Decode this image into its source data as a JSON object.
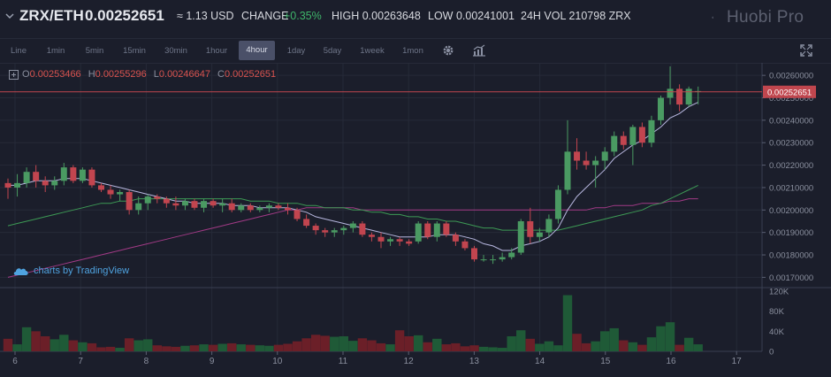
{
  "header": {
    "pair": "ZRX/ETH",
    "price": "0.00252651",
    "approx_usd": "≈ 1.13 USD",
    "change_label": "CHANGE",
    "change_value": "+0.35%",
    "high_label": "HIGH",
    "high_value": "0.00263648",
    "low_label": "LOW",
    "low_value": "0.00241001",
    "vol_label": "24H VOL",
    "vol_value": "210798 ZRX",
    "brand": "Huobi Pro"
  },
  "toolbar": {
    "timeframes": [
      "Line",
      "1min",
      "5min",
      "15min",
      "30min",
      "1hour",
      "4hour",
      "1day",
      "5day",
      "1week",
      "1mon"
    ],
    "active": "4hour"
  },
  "legend": {
    "o_label": "O",
    "o_value": "0.00253466",
    "h_label": "H",
    "h_value": "0.00255296",
    "l_label": "L",
    "l_value": "0.00246647",
    "c_label": "C",
    "c_value": "0.00252651",
    "tradingview": "charts by TradingView"
  },
  "colors": {
    "up": "#4a9a62",
    "down": "#c2454f",
    "vol_up": "#1f5a37",
    "vol_down": "#6b1f28",
    "ma_short": "#b8b8e0",
    "ma_mid": "#3d9a55",
    "ma_long": "#a23a86",
    "price_line": "#c0464e",
    "grid": "#262a38"
  },
  "chart_data": {
    "type": "candlestick",
    "ylim": [
      0.00167,
      0.00264
    ],
    "y_ticks": [
      "0.00170000",
      "0.00180000",
      "0.00190000",
      "0.00200000",
      "0.00210000",
      "0.00220000",
      "0.00230000",
      "0.00240000",
      "0.00250000",
      "0.00260000"
    ],
    "last_price": "0.00252651",
    "x_ticks": [
      "6",
      "7",
      "8",
      "9",
      "10",
      "11",
      "12",
      "13",
      "14",
      "15",
      "16",
      "17"
    ],
    "volume_ticks": [
      "120K",
      "80K",
      "40K",
      "0"
    ],
    "volume_ylim": [
      0,
      120000
    ],
    "candles": [
      {
        "t": 0,
        "o": 0.00212,
        "h": 0.00214,
        "l": 0.00205,
        "c": 0.0021,
        "v": 25000
      },
      {
        "t": 1,
        "o": 0.0021,
        "h": 0.00216,
        "l": 0.00206,
        "c": 0.00212,
        "v": 14000
      },
      {
        "t": 2,
        "o": 0.00212,
        "h": 0.00219,
        "l": 0.0021,
        "c": 0.00217,
        "v": 48000
      },
      {
        "t": 3,
        "o": 0.00217,
        "h": 0.0022,
        "l": 0.0021,
        "c": 0.00213,
        "v": 40000
      },
      {
        "t": 4,
        "o": 0.00213,
        "h": 0.00215,
        "l": 0.00208,
        "c": 0.00211,
        "v": 30000
      },
      {
        "t": 5,
        "o": 0.00211,
        "h": 0.00215,
        "l": 0.00209,
        "c": 0.00213,
        "v": 24000
      },
      {
        "t": 6,
        "o": 0.00213,
        "h": 0.00221,
        "l": 0.00211,
        "c": 0.00219,
        "v": 33000
      },
      {
        "t": 7,
        "o": 0.00219,
        "h": 0.0022,
        "l": 0.00212,
        "c": 0.00213,
        "v": 22000
      },
      {
        "t": 8,
        "o": 0.00213,
        "h": 0.00219,
        "l": 0.00212,
        "c": 0.00218,
        "v": 18000
      },
      {
        "t": 9,
        "o": 0.00218,
        "h": 0.00219,
        "l": 0.0021,
        "c": 0.00211,
        "v": 16000
      },
      {
        "t": 10,
        "o": 0.00211,
        "h": 0.00212,
        "l": 0.00208,
        "c": 0.00209,
        "v": 8000
      },
      {
        "t": 11,
        "o": 0.00209,
        "h": 0.00211,
        "l": 0.00205,
        "c": 0.00207,
        "v": 9000
      },
      {
        "t": 12,
        "o": 0.00207,
        "h": 0.00209,
        "l": 0.00204,
        "c": 0.00208,
        "v": 7000
      },
      {
        "t": 13,
        "o": 0.00208,
        "h": 0.00209,
        "l": 0.00198,
        "c": 0.002,
        "v": 26000
      },
      {
        "t": 14,
        "o": 0.002,
        "h": 0.00206,
        "l": 0.00198,
        "c": 0.00203,
        "v": 22000
      },
      {
        "t": 15,
        "o": 0.00203,
        "h": 0.00207,
        "l": 0.002,
        "c": 0.00206,
        "v": 24000
      },
      {
        "t": 16,
        "o": 0.00206,
        "h": 0.00207,
        "l": 0.00203,
        "c": 0.00205,
        "v": 12000
      },
      {
        "t": 17,
        "o": 0.00205,
        "h": 0.00206,
        "l": 0.00201,
        "c": 0.00203,
        "v": 10000
      },
      {
        "t": 18,
        "o": 0.00203,
        "h": 0.00206,
        "l": 0.002,
        "c": 0.00202,
        "v": 9000
      },
      {
        "t": 19,
        "o": 0.00202,
        "h": 0.00205,
        "l": 0.002,
        "c": 0.00204,
        "v": 11000
      },
      {
        "t": 20,
        "o": 0.00204,
        "h": 0.00205,
        "l": 0.002,
        "c": 0.00201,
        "v": 12000
      },
      {
        "t": 21,
        "o": 0.00201,
        "h": 0.00205,
        "l": 0.00199,
        "c": 0.00204,
        "v": 14000
      },
      {
        "t": 22,
        "o": 0.00204,
        "h": 0.00205,
        "l": 0.00201,
        "c": 0.00202,
        "v": 13000
      },
      {
        "t": 23,
        "o": 0.00202,
        "h": 0.00205,
        "l": 0.00199,
        "c": 0.00203,
        "v": 15000
      },
      {
        "t": 24,
        "o": 0.00203,
        "h": 0.00205,
        "l": 0.00199,
        "c": 0.002,
        "v": 16000
      },
      {
        "t": 25,
        "o": 0.002,
        "h": 0.00203,
        "l": 0.00199,
        "c": 0.00202,
        "v": 14000
      },
      {
        "t": 26,
        "o": 0.00202,
        "h": 0.00203,
        "l": 0.00199,
        "c": 0.002,
        "v": 13000
      },
      {
        "t": 27,
        "o": 0.002,
        "h": 0.00202,
        "l": 0.00199,
        "c": 0.00201,
        "v": 12000
      },
      {
        "t": 28,
        "o": 0.00201,
        "h": 0.00203,
        "l": 0.00199,
        "c": 0.00202,
        "v": 11000
      },
      {
        "t": 29,
        "o": 0.00202,
        "h": 0.00203,
        "l": 0.002,
        "c": 0.00201,
        "v": 13000
      },
      {
        "t": 30,
        "o": 0.00201,
        "h": 0.00203,
        "l": 0.00198,
        "c": 0.002,
        "v": 15000
      },
      {
        "t": 31,
        "o": 0.002,
        "h": 0.00201,
        "l": 0.00195,
        "c": 0.00196,
        "v": 20000
      },
      {
        "t": 32,
        "o": 0.00196,
        "h": 0.00198,
        "l": 0.00192,
        "c": 0.00193,
        "v": 26000
      },
      {
        "t": 33,
        "o": 0.00193,
        "h": 0.00194,
        "l": 0.00189,
        "c": 0.00191,
        "v": 33000
      },
      {
        "t": 34,
        "o": 0.00191,
        "h": 0.00192,
        "l": 0.00188,
        "c": 0.0019,
        "v": 31000
      },
      {
        "t": 35,
        "o": 0.0019,
        "h": 0.00192,
        "l": 0.00188,
        "c": 0.00191,
        "v": 29000
      },
      {
        "t": 36,
        "o": 0.00191,
        "h": 0.00193,
        "l": 0.00189,
        "c": 0.00192,
        "v": 30000
      },
      {
        "t": 37,
        "o": 0.00192,
        "h": 0.00195,
        "l": 0.0019,
        "c": 0.00194,
        "v": 21000
      },
      {
        "t": 38,
        "o": 0.00194,
        "h": 0.00195,
        "l": 0.00188,
        "c": 0.00189,
        "v": 26000
      },
      {
        "t": 39,
        "o": 0.00189,
        "h": 0.0019,
        "l": 0.00186,
        "c": 0.00188,
        "v": 22000
      },
      {
        "t": 40,
        "o": 0.00188,
        "h": 0.0019,
        "l": 0.00183,
        "c": 0.00186,
        "v": 16000
      },
      {
        "t": 41,
        "o": 0.00186,
        "h": 0.00188,
        "l": 0.00184,
        "c": 0.00187,
        "v": 14000
      },
      {
        "t": 42,
        "o": 0.00187,
        "h": 0.00188,
        "l": 0.00184,
        "c": 0.00186,
        "v": 42000
      },
      {
        "t": 43,
        "o": 0.00186,
        "h": 0.00187,
        "l": 0.00184,
        "c": 0.00185,
        "v": 30000
      },
      {
        "t": 44,
        "o": 0.00186,
        "h": 0.00195,
        "l": 0.00185,
        "c": 0.00194,
        "v": 32000
      },
      {
        "t": 45,
        "o": 0.00194,
        "h": 0.00195,
        "l": 0.00187,
        "c": 0.00188,
        "v": 18000
      },
      {
        "t": 46,
        "o": 0.00188,
        "h": 0.00195,
        "l": 0.00186,
        "c": 0.00194,
        "v": 25000
      },
      {
        "t": 47,
        "o": 0.00194,
        "h": 0.00195,
        "l": 0.00188,
        "c": 0.00189,
        "v": 14000
      },
      {
        "t": 48,
        "o": 0.00189,
        "h": 0.0019,
        "l": 0.00184,
        "c": 0.00186,
        "v": 16000
      },
      {
        "t": 49,
        "o": 0.00186,
        "h": 0.00187,
        "l": 0.00182,
        "c": 0.00183,
        "v": 10000
      },
      {
        "t": 50,
        "o": 0.00183,
        "h": 0.00184,
        "l": 0.00177,
        "c": 0.00178,
        "v": 12000
      },
      {
        "t": 51,
        "o": 0.00178,
        "h": 0.0018,
        "l": 0.00177,
        "c": 0.00178,
        "v": 9000
      },
      {
        "t": 52,
        "o": 0.00178,
        "h": 0.0018,
        "l": 0.00176,
        "c": 0.00178,
        "v": 8000
      },
      {
        "t": 53,
        "o": 0.00178,
        "h": 0.00181,
        "l": 0.00177,
        "c": 0.00179,
        "v": 7000
      },
      {
        "t": 54,
        "o": 0.00179,
        "h": 0.00183,
        "l": 0.00178,
        "c": 0.00181,
        "v": 30000
      },
      {
        "t": 55,
        "o": 0.00181,
        "h": 0.00196,
        "l": 0.0018,
        "c": 0.00195,
        "v": 42000
      },
      {
        "t": 56,
        "o": 0.00195,
        "h": 0.00201,
        "l": 0.00185,
        "c": 0.00188,
        "v": 25000
      },
      {
        "t": 57,
        "o": 0.00188,
        "h": 0.00192,
        "l": 0.00186,
        "c": 0.0019,
        "v": 15000
      },
      {
        "t": 58,
        "o": 0.0019,
        "h": 0.00198,
        "l": 0.00188,
        "c": 0.00196,
        "v": 20000
      },
      {
        "t": 59,
        "o": 0.00196,
        "h": 0.00211,
        "l": 0.00194,
        "c": 0.00209,
        "v": 12000
      },
      {
        "t": 60,
        "o": 0.00209,
        "h": 0.0024,
        "l": 0.00207,
        "c": 0.00226,
        "v": 112000
      },
      {
        "t": 61,
        "o": 0.00226,
        "h": 0.00232,
        "l": 0.00218,
        "c": 0.00222,
        "v": 35000
      },
      {
        "t": 62,
        "o": 0.00222,
        "h": 0.00226,
        "l": 0.00218,
        "c": 0.0022,
        "v": 16000
      },
      {
        "t": 63,
        "o": 0.0022,
        "h": 0.00224,
        "l": 0.0021,
        "c": 0.00222,
        "v": 20000
      },
      {
        "t": 64,
        "o": 0.00222,
        "h": 0.00228,
        "l": 0.00218,
        "c": 0.00226,
        "v": 40000
      },
      {
        "t": 65,
        "o": 0.00226,
        "h": 0.00235,
        "l": 0.00224,
        "c": 0.00233,
        "v": 46000
      },
      {
        "t": 66,
        "o": 0.00233,
        "h": 0.00235,
        "l": 0.00227,
        "c": 0.00229,
        "v": 22000
      },
      {
        "t": 67,
        "o": 0.00229,
        "h": 0.00238,
        "l": 0.0022,
        "c": 0.00237,
        "v": 18000
      },
      {
        "t": 68,
        "o": 0.00237,
        "h": 0.00239,
        "l": 0.00228,
        "c": 0.0023,
        "v": 13000
      },
      {
        "t": 69,
        "o": 0.0023,
        "h": 0.00242,
        "l": 0.00228,
        "c": 0.0024,
        "v": 28000
      },
      {
        "t": 70,
        "o": 0.0024,
        "h": 0.00251,
        "l": 0.00238,
        "c": 0.0025,
        "v": 50000
      },
      {
        "t": 71,
        "o": 0.0025,
        "h": 0.00264,
        "l": 0.00247,
        "c": 0.00254,
        "v": 58000
      },
      {
        "t": 72,
        "o": 0.00254,
        "h": 0.00256,
        "l": 0.00244,
        "c": 0.00247,
        "v": 13000
      },
      {
        "t": 73,
        "o": 0.00247,
        "h": 0.00255,
        "l": 0.00246,
        "c": 0.00254,
        "v": 27000
      },
      {
        "t": 74,
        "o": 0.00253,
        "h": 0.00255,
        "l": 0.00247,
        "c": 0.00253,
        "v": 14000
      }
    ],
    "ma_short": [
      0.00211,
      0.00211,
      0.00212,
      0.00213,
      0.00213,
      0.00213,
      0.00214,
      0.00214,
      0.00214,
      0.00213,
      0.00212,
      0.00211,
      0.0021,
      0.00209,
      0.00208,
      0.00207,
      0.00206,
      0.00205,
      0.00204,
      0.00204,
      0.00203,
      0.00203,
      0.00203,
      0.00203,
      0.00202,
      0.00202,
      0.00202,
      0.00201,
      0.00201,
      0.00201,
      0.00201,
      0.002,
      0.00199,
      0.00197,
      0.00196,
      0.00195,
      0.00194,
      0.00193,
      0.00192,
      0.00191,
      0.0019,
      0.00189,
      0.00188,
      0.00188,
      0.00188,
      0.00188,
      0.00189,
      0.00189,
      0.00189,
      0.00188,
      0.00187,
      0.00185,
      0.00184,
      0.00182,
      0.00182,
      0.00184,
      0.00185,
      0.00186,
      0.00188,
      0.00192,
      0.002,
      0.00206,
      0.0021,
      0.00214,
      0.00218,
      0.00223,
      0.00226,
      0.00229,
      0.00231,
      0.00234,
      0.00237,
      0.00241,
      0.00243,
      0.00246,
      0.00248
    ],
    "ma_mid": [
      0.00193,
      0.00194,
      0.00195,
      0.00196,
      0.00197,
      0.00198,
      0.00199,
      0.002,
      0.00201,
      0.00202,
      0.00203,
      0.00203,
      0.00204,
      0.00204,
      0.00205,
      0.00205,
      0.00205,
      0.00205,
      0.00205,
      0.00205,
      0.00205,
      0.00205,
      0.00205,
      0.00205,
      0.00205,
      0.00205,
      0.00204,
      0.00204,
      0.00204,
      0.00203,
      0.00203,
      0.00203,
      0.00202,
      0.00202,
      0.00201,
      0.00201,
      0.00201,
      0.002,
      0.002,
      0.00199,
      0.00199,
      0.00198,
      0.00198,
      0.00197,
      0.00197,
      0.00196,
      0.00196,
      0.00195,
      0.00195,
      0.00194,
      0.00193,
      0.00192,
      0.00192,
      0.00191,
      0.00191,
      0.00191,
      0.00191,
      0.00191,
      0.00191,
      0.00191,
      0.00192,
      0.00193,
      0.00194,
      0.00195,
      0.00196,
      0.00197,
      0.00198,
      0.00199,
      0.002,
      0.00202,
      0.00203,
      0.00205,
      0.00207,
      0.00209,
      0.00211
    ],
    "ma_long": [
      0.0017,
      0.00171,
      0.00172,
      0.00173,
      0.00174,
      0.00175,
      0.00176,
      0.00177,
      0.00178,
      0.00179,
      0.0018,
      0.00181,
      0.00182,
      0.00183,
      0.00184,
      0.00185,
      0.00186,
      0.00187,
      0.00188,
      0.00189,
      0.0019,
      0.00191,
      0.00192,
      0.00193,
      0.00194,
      0.00195,
      0.00196,
      0.00197,
      0.00198,
      0.00199,
      0.002,
      0.002,
      0.00201,
      0.00201,
      0.00201,
      0.00201,
      0.00201,
      0.00201,
      0.002,
      0.002,
      0.002,
      0.002,
      0.002,
      0.002,
      0.002,
      0.002,
      0.002,
      0.002,
      0.002,
      0.002,
      0.002,
      0.002,
      0.002,
      0.002,
      0.002,
      0.002,
      0.002,
      0.002,
      0.002,
      0.002,
      0.002,
      0.002,
      0.002,
      0.00201,
      0.00201,
      0.00202,
      0.00202,
      0.00202,
      0.00203,
      0.00203,
      0.00203,
      0.00204,
      0.00204,
      0.00205,
      0.00205
    ]
  }
}
